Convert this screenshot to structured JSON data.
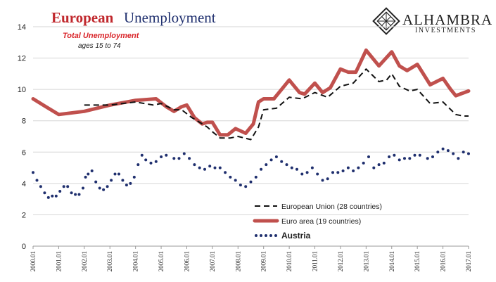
{
  "title": {
    "part1": "European",
    "part2": "Unemployment"
  },
  "annotation": {
    "main": "Total Unemployment",
    "sub": "ages 15 to 74"
  },
  "logo": {
    "name": "ALHAMBRA",
    "sub": "INVESTMENTS"
  },
  "chart_data": {
    "type": "line",
    "ylim": [
      0,
      14
    ],
    "yticks": [
      0,
      2,
      4,
      6,
      8,
      10,
      12,
      14
    ],
    "x_tick_labels": [
      "2000.01",
      "2001.01",
      "2002.01",
      "2003.01",
      "2004.01",
      "2005.01",
      "2006.01",
      "2007.01",
      "2008.01",
      "2009.01",
      "2010.01",
      "2011.01",
      "2012.01",
      "2013.01",
      "2014.01",
      "2015.01",
      "2016.01",
      "2017.01"
    ],
    "grid": "horizontal",
    "legend_position": "bottom-right",
    "series": [
      {
        "name": "European Union (28 countries)",
        "style": "dashed",
        "color": "#111111",
        "points": [
          [
            2002.0,
            9.0
          ],
          [
            2003.0,
            9.0
          ],
          [
            2004.0,
            9.2
          ],
          [
            2004.7,
            9.0
          ],
          [
            2005.0,
            9.1
          ],
          [
            2005.5,
            8.7
          ],
          [
            2005.8,
            8.7
          ],
          [
            2006.2,
            8.2
          ],
          [
            2006.5,
            7.9
          ],
          [
            2006.8,
            7.6
          ],
          [
            2007.0,
            7.3
          ],
          [
            2007.3,
            6.9
          ],
          [
            2007.7,
            6.9
          ],
          [
            2008.0,
            7.0
          ],
          [
            2008.5,
            6.8
          ],
          [
            2008.8,
            7.6
          ],
          [
            2009.0,
            8.7
          ],
          [
            2009.5,
            8.8
          ],
          [
            2010.0,
            9.5
          ],
          [
            2010.5,
            9.4
          ],
          [
            2011.0,
            9.8
          ],
          [
            2011.5,
            9.5
          ],
          [
            2012.0,
            10.2
          ],
          [
            2012.5,
            10.4
          ],
          [
            2013.0,
            11.3
          ],
          [
            2013.5,
            10.5
          ],
          [
            2013.8,
            10.6
          ],
          [
            2014.0,
            11.0
          ],
          [
            2014.3,
            10.2
          ],
          [
            2014.7,
            9.9
          ],
          [
            2015.0,
            10.0
          ],
          [
            2015.5,
            9.1
          ],
          [
            2016.0,
            9.2
          ],
          [
            2016.5,
            8.4
          ],
          [
            2016.8,
            8.3
          ],
          [
            2017.0,
            8.3
          ]
        ]
      },
      {
        "name": "Euro area (19 countries)",
        "style": "solid",
        "color": "#c0504d",
        "points": [
          [
            2000.0,
            9.4
          ],
          [
            2000.5,
            8.9
          ],
          [
            2001.0,
            8.4
          ],
          [
            2002.0,
            8.6
          ],
          [
            2003.0,
            9.0
          ],
          [
            2004.0,
            9.3
          ],
          [
            2004.8,
            9.4
          ],
          [
            2005.2,
            8.9
          ],
          [
            2005.5,
            8.6
          ],
          [
            2005.8,
            8.9
          ],
          [
            2006.0,
            9.0
          ],
          [
            2006.3,
            8.2
          ],
          [
            2006.6,
            7.8
          ],
          [
            2006.8,
            7.9
          ],
          [
            2007.0,
            7.9
          ],
          [
            2007.3,
            7.1
          ],
          [
            2007.6,
            7.1
          ],
          [
            2007.9,
            7.5
          ],
          [
            2008.3,
            7.2
          ],
          [
            2008.6,
            7.8
          ],
          [
            2008.8,
            9.2
          ],
          [
            2009.0,
            9.4
          ],
          [
            2009.4,
            9.4
          ],
          [
            2010.0,
            10.6
          ],
          [
            2010.4,
            9.8
          ],
          [
            2010.6,
            9.7
          ],
          [
            2011.0,
            10.4
          ],
          [
            2011.3,
            9.8
          ],
          [
            2011.6,
            10.1
          ],
          [
            2012.0,
            11.3
          ],
          [
            2012.3,
            11.1
          ],
          [
            2012.6,
            11.1
          ],
          [
            2013.0,
            12.5
          ],
          [
            2013.5,
            11.5
          ],
          [
            2014.0,
            12.4
          ],
          [
            2014.3,
            11.5
          ],
          [
            2014.6,
            11.2
          ],
          [
            2015.0,
            11.6
          ],
          [
            2015.5,
            10.3
          ],
          [
            2016.0,
            10.7
          ],
          [
            2016.3,
            10.0
          ],
          [
            2016.5,
            9.6
          ],
          [
            2017.0,
            9.9
          ]
        ]
      },
      {
        "name": "Austria",
        "style": "dotted",
        "color": "#1f2f6e",
        "points": [
          [
            2000.0,
            4.7
          ],
          [
            2000.15,
            4.2
          ],
          [
            2000.3,
            3.8
          ],
          [
            2000.45,
            3.4
          ],
          [
            2000.6,
            3.1
          ],
          [
            2000.75,
            3.2
          ],
          [
            2000.9,
            3.2
          ],
          [
            2001.05,
            3.5
          ],
          [
            2001.2,
            3.8
          ],
          [
            2001.35,
            3.8
          ],
          [
            2001.5,
            3.4
          ],
          [
            2001.65,
            3.3
          ],
          [
            2001.8,
            3.3
          ],
          [
            2001.95,
            3.7
          ],
          [
            2002.05,
            4.4
          ],
          [
            2002.15,
            4.6
          ],
          [
            2002.3,
            4.8
          ],
          [
            2002.45,
            4.1
          ],
          [
            2002.6,
            3.7
          ],
          [
            2002.75,
            3.6
          ],
          [
            2002.9,
            3.8
          ],
          [
            2003.05,
            4.2
          ],
          [
            2003.2,
            4.6
          ],
          [
            2003.35,
            4.6
          ],
          [
            2003.5,
            4.2
          ],
          [
            2003.65,
            3.9
          ],
          [
            2003.8,
            4.0
          ],
          [
            2003.95,
            4.4
          ],
          [
            2004.1,
            5.2
          ],
          [
            2004.25,
            5.8
          ],
          [
            2004.4,
            5.5
          ],
          [
            2004.6,
            5.3
          ],
          [
            2004.8,
            5.4
          ],
          [
            2005.0,
            5.7
          ],
          [
            2005.2,
            5.8
          ],
          [
            2005.5,
            5.6
          ],
          [
            2005.7,
            5.6
          ],
          [
            2005.9,
            5.9
          ],
          [
            2006.1,
            5.6
          ],
          [
            2006.3,
            5.2
          ],
          [
            2006.5,
            5.0
          ],
          [
            2006.7,
            4.9
          ],
          [
            2006.9,
            5.1
          ],
          [
            2007.1,
            5.0
          ],
          [
            2007.3,
            5.0
          ],
          [
            2007.5,
            4.7
          ],
          [
            2007.7,
            4.4
          ],
          [
            2007.9,
            4.2
          ],
          [
            2008.1,
            3.9
          ],
          [
            2008.3,
            3.8
          ],
          [
            2008.5,
            4.1
          ],
          [
            2008.7,
            4.4
          ],
          [
            2008.9,
            4.9
          ],
          [
            2009.1,
            5.2
          ],
          [
            2009.3,
            5.5
          ],
          [
            2009.5,
            5.7
          ],
          [
            2009.7,
            5.4
          ],
          [
            2009.9,
            5.2
          ],
          [
            2010.1,
            5.0
          ],
          [
            2010.3,
            4.9
          ],
          [
            2010.5,
            4.6
          ],
          [
            2010.7,
            4.7
          ],
          [
            2010.9,
            5.0
          ],
          [
            2011.1,
            4.6
          ],
          [
            2011.3,
            4.2
          ],
          [
            2011.5,
            4.3
          ],
          [
            2011.7,
            4.7
          ],
          [
            2011.9,
            4.7
          ],
          [
            2012.1,
            4.8
          ],
          [
            2012.3,
            5.0
          ],
          [
            2012.5,
            4.8
          ],
          [
            2012.7,
            5.0
          ],
          [
            2012.9,
            5.3
          ],
          [
            2013.1,
            5.7
          ],
          [
            2013.3,
            5.0
          ],
          [
            2013.5,
            5.2
          ],
          [
            2013.7,
            5.3
          ],
          [
            2013.9,
            5.7
          ],
          [
            2014.1,
            5.8
          ],
          [
            2014.3,
            5.5
          ],
          [
            2014.5,
            5.6
          ],
          [
            2014.7,
            5.6
          ],
          [
            2014.9,
            5.8
          ],
          [
            2015.1,
            5.8
          ],
          [
            2015.4,
            5.6
          ],
          [
            2015.6,
            5.7
          ],
          [
            2015.8,
            6.0
          ],
          [
            2016.0,
            6.2
          ],
          [
            2016.2,
            6.1
          ],
          [
            2016.4,
            5.9
          ],
          [
            2016.6,
            5.6
          ],
          [
            2016.8,
            6.0
          ],
          [
            2017.0,
            5.9
          ]
        ]
      }
    ]
  }
}
